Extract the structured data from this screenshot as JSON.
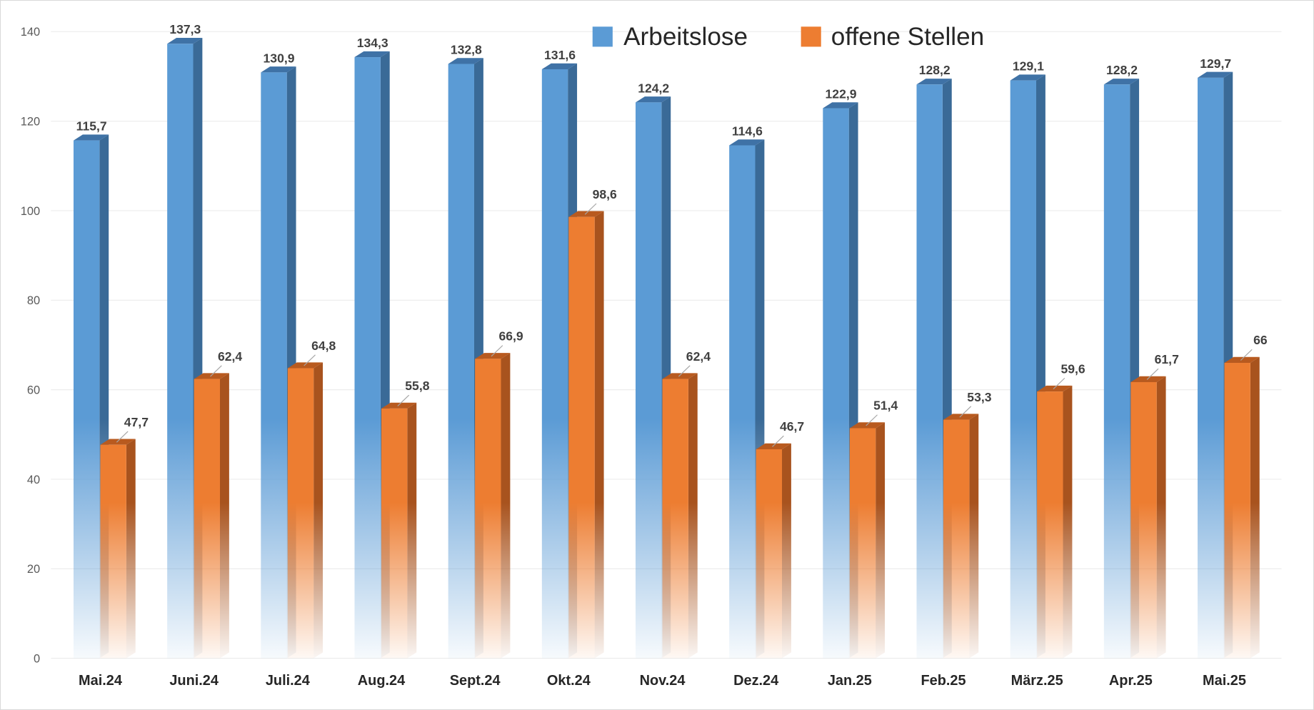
{
  "chart_data": {
    "type": "bar",
    "title": "",
    "xlabel": "",
    "ylabel": "",
    "ylim": [
      0,
      140
    ],
    "yticks": [
      0,
      20,
      40,
      60,
      80,
      100,
      120,
      140
    ],
    "grid": true,
    "legend_position": "top",
    "categories": [
      "Mai.24",
      "Juni.24",
      "Juli.24",
      "Aug.24",
      "Sept.24",
      "Okt.24",
      "Nov.24",
      "Dez.24",
      "Jan.25",
      "Feb.25",
      "März.25",
      "Apr.25",
      "Mai.25"
    ],
    "series": [
      {
        "name": "Arbeitslose",
        "color": "#5B9BD5",
        "values": [
          115.7,
          137.3,
          130.9,
          134.3,
          132.8,
          131.6,
          124.2,
          114.6,
          122.9,
          128.2,
          129.1,
          128.2,
          129.7
        ],
        "labels": [
          "115,7",
          "137,3",
          "130,9",
          "134,3",
          "132,8",
          "131,6",
          "124,2",
          "114,6",
          "122,9",
          "128,2",
          "129,1",
          "128,2",
          "129,7"
        ]
      },
      {
        "name": "offene Stellen",
        "color": "#ED7D31",
        "values": [
          47.7,
          62.4,
          64.8,
          55.8,
          66.9,
          98.6,
          62.4,
          46.7,
          51.4,
          53.3,
          59.6,
          61.7,
          66
        ],
        "labels": [
          "47,7",
          "62,4",
          "64,8",
          "55,8",
          "66,9",
          "98,6",
          "62,4",
          "46,7",
          "51,4",
          "53,3",
          "59,6",
          "61,7",
          "66"
        ]
      }
    ]
  }
}
